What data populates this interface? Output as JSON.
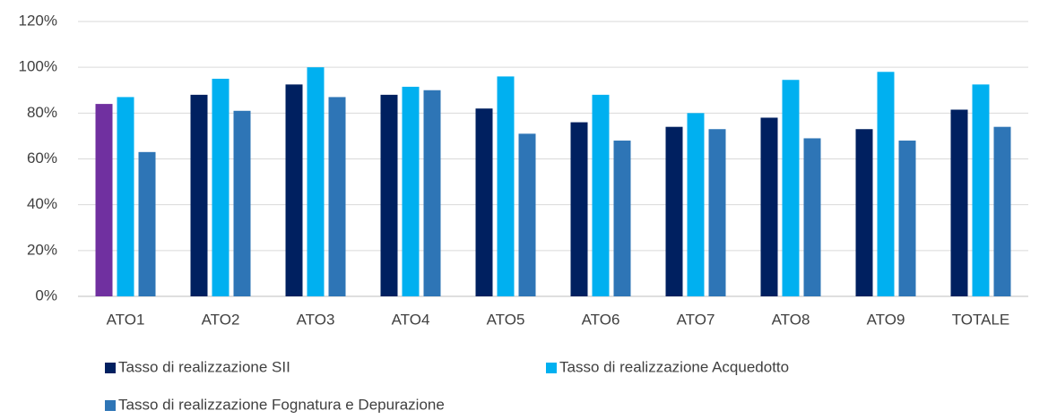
{
  "chart_data": {
    "type": "bar",
    "categories": [
      "ATO1",
      "ATO2",
      "ATO3",
      "ATO4",
      "ATO5",
      "ATO6",
      "ATO7",
      "ATO8",
      "ATO9",
      "TOTALE"
    ],
    "series": [
      {
        "name": "Tasso di realizzazione SII",
        "color": "#002060",
        "colors": [
          "#7030a0",
          "#002060",
          "#002060",
          "#002060",
          "#002060",
          "#002060",
          "#002060",
          "#002060",
          "#002060",
          "#002060"
        ],
        "values": [
          84,
          88,
          92.5,
          88,
          82,
          76,
          74,
          78,
          73,
          81.5
        ]
      },
      {
        "name": "Tasso di realizzazione Acquedotto",
        "color": "#00b0f0",
        "values": [
          87,
          95,
          100,
          91.5,
          96,
          88,
          80,
          94.5,
          98,
          92.5
        ]
      },
      {
        "name": "Tasso di realizzazione Fognatura e Depurazione",
        "color": "#2e75b6",
        "values": [
          63,
          81,
          87,
          90,
          71,
          68,
          73,
          69,
          68,
          74
        ]
      }
    ],
    "ylim": [
      0,
      120
    ],
    "yticks": [
      {
        "value": 0,
        "label": "0%"
      },
      {
        "value": 20,
        "label": "20%"
      },
      {
        "value": 40,
        "label": "40%"
      },
      {
        "value": 60,
        "label": "60%"
      },
      {
        "value": 80,
        "label": "80%"
      },
      {
        "value": 100,
        "label": "100%"
      },
      {
        "value": 120,
        "label": "120%"
      }
    ],
    "grid": true,
    "legend": "bottom"
  }
}
